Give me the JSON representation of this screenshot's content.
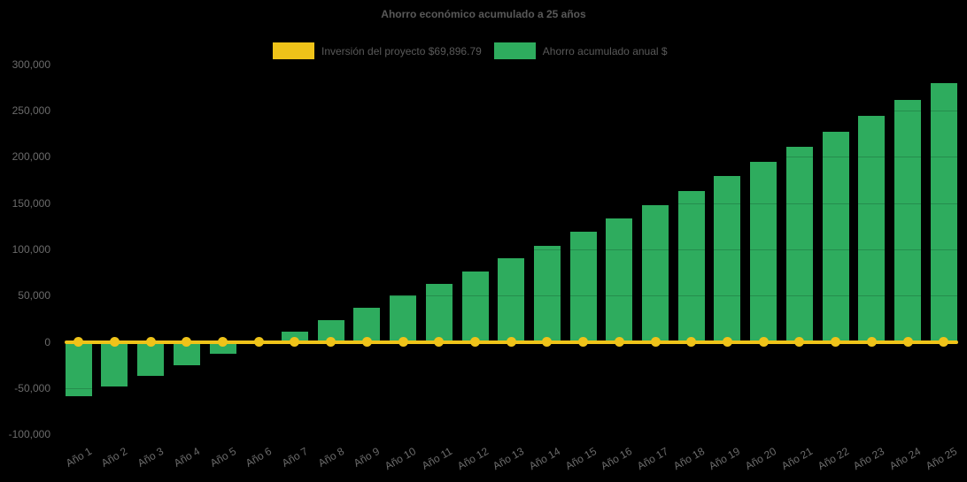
{
  "title": "Ahorro económico acumulado a 25 años",
  "colors": {
    "background": "#000000",
    "bar_green": "#2EAC5E",
    "line_yellow": "#EFC319",
    "title_text": "#595959",
    "axis_text": "#6B6B6B"
  },
  "legend": {
    "position": "top",
    "items": [
      {
        "label": "Inversión del proyecto $69,896.79",
        "color": "#EFC319",
        "marker": "rect"
      },
      {
        "label": "Ahorro acumulado anual $",
        "color": "#2EAC5E",
        "marker": "rect"
      }
    ]
  },
  "chart_data": {
    "type": "bar",
    "title": "Ahorro económico acumulado a 25 años",
    "xlabel": "",
    "ylabel": "",
    "categories": [
      "Año 1",
      "Año 2",
      "Año 3",
      "Año 4",
      "Año 5",
      "Año 6",
      "Año 7",
      "Año 8",
      "Año 9",
      "Año 10",
      "Año 11",
      "Año 12",
      "Año 13",
      "Año 14",
      "Año 15",
      "Año 16",
      "Año 17",
      "Año 18",
      "Año 19",
      "Año 20",
      "Año 21",
      "Año 22",
      "Año 23",
      "Año 24",
      "Año 25"
    ],
    "series": [
      {
        "name": "Inversión del proyecto $69,896.79",
        "type": "line",
        "color": "#EFC319",
        "marker": "circle",
        "values": [
          0,
          0,
          0,
          0,
          0,
          0,
          0,
          0,
          0,
          0,
          0,
          0,
          0,
          0,
          0,
          0,
          0,
          0,
          0,
          0,
          0,
          0,
          0,
          0,
          0
        ]
      },
      {
        "name": "Ahorro acumulado anual $",
        "type": "bar",
        "color": "#2EAC5E",
        "values": [
          -59000,
          -47900,
          -36400,
          -25000,
          -13200,
          -1000,
          11400,
          23900,
          36500,
          49900,
          63100,
          75600,
          89900,
          104200,
          118600,
          133300,
          148100,
          163300,
          178900,
          194700,
          210900,
          227400,
          244200,
          261400,
          279400
        ]
      }
    ],
    "ylim": [
      -100000,
      300000
    ],
    "y_tick_step": 50000,
    "y_tick_labels": [
      "300,000",
      "250,000",
      "200,000",
      "150,000",
      "100,000",
      "50,000",
      "0",
      "-50,000",
      "-100,000"
    ],
    "grid": false,
    "legend_position": "top"
  }
}
